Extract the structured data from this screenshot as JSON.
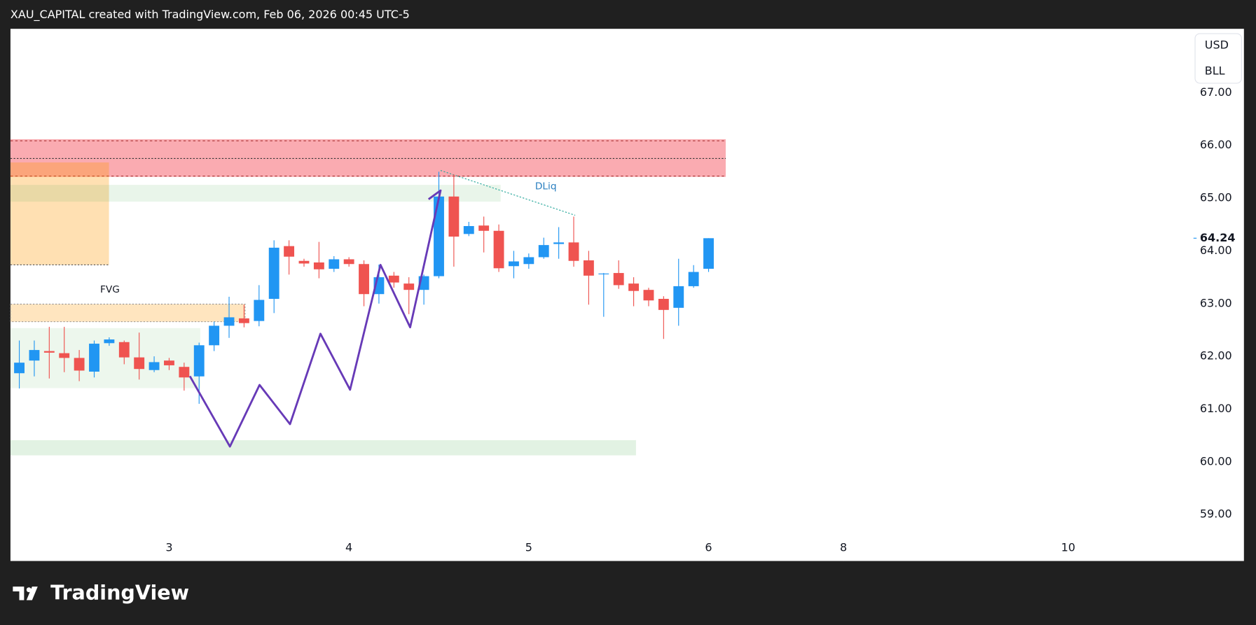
{
  "header": {
    "text": "XAU_CAPITAL created with TradingView.com, Feb 06, 2026 00:45 UTC-5"
  },
  "footer": {
    "logo_text": "TradingView"
  },
  "currency_box": [
    "USD",
    "BLL"
  ],
  "annotations": {
    "fvg": "FVG",
    "dliq": "DLiq"
  },
  "chart_data": {
    "type": "candlestick",
    "up_color": "#2196f3",
    "down_color": "#ef5350",
    "x": [
      0,
      1,
      2,
      3,
      4,
      5,
      6,
      7,
      8,
      9,
      10,
      11,
      12,
      13,
      14,
      15,
      16,
      17,
      18,
      19,
      20,
      21,
      22,
      23,
      24,
      25,
      26,
      27,
      28,
      29,
      30,
      31,
      32,
      33,
      34,
      35,
      36,
      37,
      38,
      39,
      40,
      41,
      42,
      43,
      44,
      45,
      46
    ],
    "open": [
      61.68,
      61.92,
      62.1,
      62.06,
      61.97,
      61.71,
      62.25,
      62.27,
      61.98,
      61.74,
      61.92,
      61.8,
      61.62,
      62.21,
      62.58,
      62.72,
      62.67,
      63.09,
      64.09,
      63.81,
      63.78,
      63.66,
      63.84,
      63.75,
      63.18,
      63.53,
      63.38,
      63.26,
      63.52,
      65.03,
      64.32,
      64.48,
      64.38,
      63.71,
      63.75,
      63.88,
      64.13,
      64.16,
      63.82,
      63.56,
      63.58,
      63.38,
      63.26,
      63.09,
      62.92,
      63.33,
      63.66
    ],
    "high": [
      62.3,
      62.3,
      62.56,
      62.56,
      62.12,
      62.3,
      62.36,
      62.3,
      62.45,
      62.0,
      61.97,
      61.88,
      62.26,
      62.66,
      63.13,
      62.98,
      63.35,
      64.2,
      64.2,
      63.85,
      64.17,
      63.9,
      63.88,
      63.82,
      63.74,
      63.6,
      63.5,
      63.55,
      65.5,
      65.45,
      64.55,
      64.65,
      64.5,
      64.0,
      63.95,
      64.25,
      64.45,
      64.65,
      64.0,
      63.58,
      63.82,
      63.5,
      63.3,
      63.14,
      63.85,
      63.73,
      64.24
    ],
    "low": [
      61.39,
      61.62,
      61.58,
      61.7,
      61.53,
      61.6,
      62.2,
      61.85,
      61.56,
      61.7,
      61.74,
      61.35,
      61.1,
      62.1,
      62.35,
      62.55,
      62.57,
      62.82,
      63.55,
      63.7,
      63.48,
      63.6,
      63.7,
      62.95,
      63.0,
      63.3,
      62.8,
      62.98,
      63.48,
      63.7,
      64.28,
      63.97,
      63.6,
      63.48,
      63.66,
      63.85,
      63.85,
      63.7,
      62.98,
      62.75,
      63.28,
      62.95,
      62.95,
      62.33,
      62.58,
      63.3,
      63.6
    ],
    "close": [
      61.88,
      62.12,
      62.07,
      61.97,
      61.73,
      62.24,
      62.32,
      61.98,
      61.76,
      61.89,
      61.83,
      61.6,
      62.21,
      62.58,
      62.74,
      62.63,
      63.07,
      64.06,
      63.89,
      63.76,
      63.65,
      63.84,
      63.75,
      63.18,
      63.5,
      63.4,
      63.26,
      63.52,
      65.03,
      64.27,
      64.47,
      64.38,
      63.67,
      63.8,
      63.88,
      64.11,
      64.16,
      63.81,
      63.53,
      63.57,
      63.35,
      63.24,
      63.06,
      62.88,
      63.33,
      63.6,
      64.24
    ],
    "last_price": 64.24,
    "last_price_label": "64.24",
    "xlim": [
      -0.59,
      78.2
    ],
    "xticks": [
      {
        "value": 10,
        "label": "3"
      },
      {
        "value": 22,
        "label": "4"
      },
      {
        "value": 34,
        "label": "5"
      },
      {
        "value": 46,
        "label": "6"
      },
      {
        "value": 55,
        "label": "8"
      },
      {
        "value": 70,
        "label": "10"
      }
    ],
    "ylim": [
      58.12,
      68.21
    ],
    "yticks": [
      {
        "value": 59,
        "label": "59.00"
      },
      {
        "value": 60,
        "label": "60.00"
      },
      {
        "value": 61,
        "label": "61.00"
      },
      {
        "value": 62,
        "label": "62.00"
      },
      {
        "value": 63,
        "label": "63.00"
      },
      {
        "value": 64,
        "label": "64.00"
      },
      {
        "value": 65,
        "label": "65.00"
      },
      {
        "value": 66,
        "label": "66.00"
      },
      {
        "value": 67,
        "label": "67.00"
      }
    ],
    "grid": false
  }
}
